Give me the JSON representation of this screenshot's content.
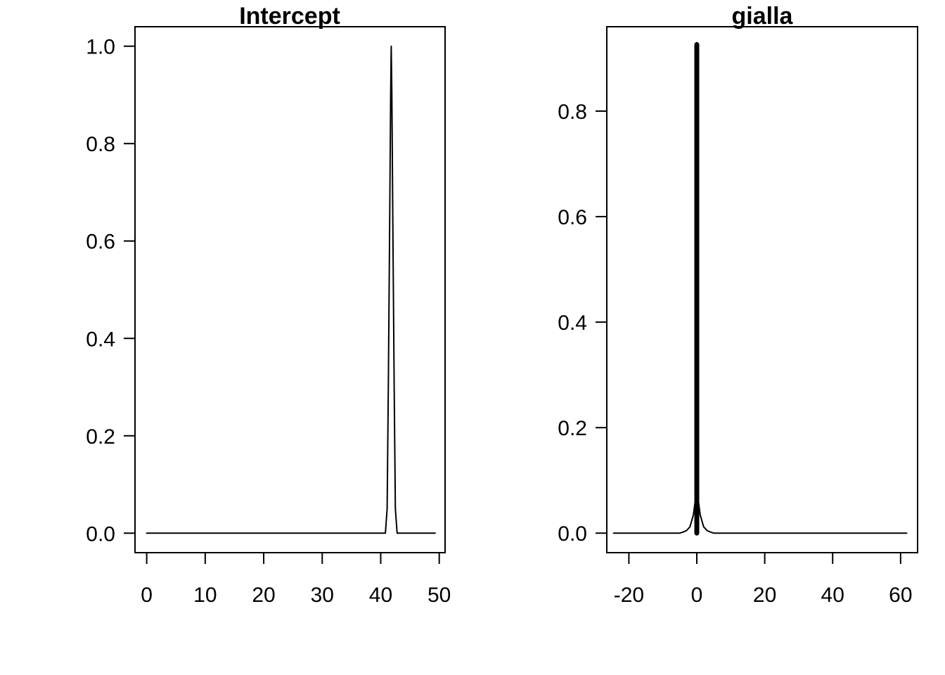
{
  "chart_data": [
    {
      "type": "line",
      "title": "Intercept",
      "xlabel": "",
      "ylabel": "",
      "xlim": [
        -2,
        51
      ],
      "ylim": [
        -0.04,
        1.04
      ],
      "x_ticks": [
        0,
        10,
        20,
        30,
        40,
        50
      ],
      "x_tick_labels": [
        "0",
        "10",
        "20",
        "30",
        "40",
        "50"
      ],
      "y_ticks": [
        0.0,
        0.2,
        0.4,
        0.6,
        0.8,
        1.0
      ],
      "y_tick_labels": [
        "0.0",
        "0.2",
        "0.4",
        "0.6",
        "0.8",
        "1.0"
      ],
      "grid": false,
      "series": [
        {
          "line_width": 2,
          "points": [
            [
              0,
              0
            ],
            [
              40,
              0
            ],
            [
              40.8,
              0
            ],
            [
              41.1,
              0.05
            ],
            [
              41.3,
              0.3
            ],
            [
              41.5,
              0.6
            ],
            [
              41.7,
              0.9
            ],
            [
              41.8,
              1.0
            ],
            [
              41.9,
              0.9
            ],
            [
              42.1,
              0.6
            ],
            [
              42.3,
              0.3
            ],
            [
              42.5,
              0.05
            ],
            [
              42.8,
              0
            ],
            [
              49.3,
              0
            ]
          ]
        }
      ]
    },
    {
      "type": "line",
      "title": "gialla",
      "xlabel": "",
      "ylabel": "",
      "xlim": [
        -26.5,
        65
      ],
      "ylim": [
        -0.037,
        0.96
      ],
      "x_ticks": [
        -20,
        0,
        20,
        40,
        60
      ],
      "x_tick_labels": [
        "-20",
        "0",
        "20",
        "40",
        "60"
      ],
      "y_ticks": [
        0.0,
        0.2,
        0.4,
        0.6,
        0.8
      ],
      "y_tick_labels": [
        "0.0",
        "0.2",
        "0.4",
        "0.6",
        "0.8"
      ],
      "grid": false,
      "series": [
        {
          "line_width": 2,
          "points": [
            [
              -24.5,
              0
            ],
            [
              -5,
              0
            ],
            [
              -4,
              0.002
            ],
            [
              -3,
              0.005
            ],
            [
              -2,
              0.012
            ],
            [
              -1,
              0.035
            ],
            [
              -0.5,
              0.06
            ],
            [
              -0.15,
              0.07
            ],
            [
              0,
              0.93
            ],
            [
              0.15,
              0.07
            ],
            [
              0.5,
              0.06
            ],
            [
              1,
              0.035
            ],
            [
              2,
              0.012
            ],
            [
              3,
              0.005
            ],
            [
              4,
              0.002
            ],
            [
              5,
              0
            ],
            [
              61.8,
              0
            ]
          ]
        },
        {
          "line_width": 7,
          "points": [
            [
              0,
              0.0
            ],
            [
              0,
              0.926
            ]
          ]
        }
      ]
    }
  ]
}
